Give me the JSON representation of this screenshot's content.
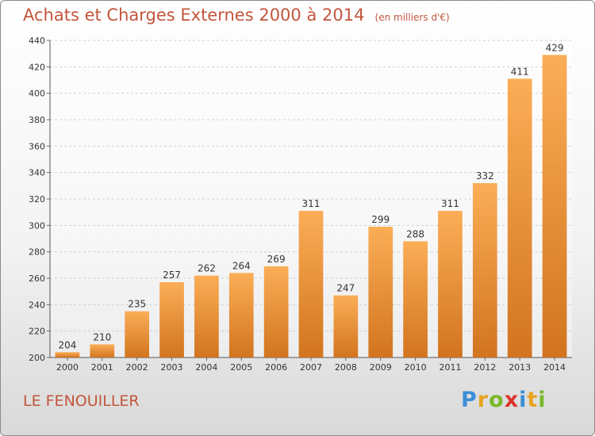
{
  "header": {
    "title": "Achats et Charges Externes 2000 à 2014",
    "unit": "(en milliers d'€)"
  },
  "footer": {
    "town": "LE FENOUILLER",
    "logo_letters": [
      "P",
      "r",
      "o",
      "x",
      "i",
      "t",
      "i"
    ],
    "logo_colors": [
      "#3b8fd6",
      "#e8a320",
      "#78b829",
      "#d9342b",
      "#3b8fd6",
      "#e8a320",
      "#78b829"
    ]
  },
  "colors": {
    "accent": "#c2563d",
    "bar_light": "#fbae57",
    "bar_dark": "#d2741f",
    "grid": "#cfcfcf"
  },
  "chart_data": {
    "type": "bar",
    "categories": [
      "2000",
      "2001",
      "2002",
      "2003",
      "2004",
      "2005",
      "2006",
      "2007",
      "2008",
      "2009",
      "2010",
      "2011",
      "2012",
      "2013",
      "2014"
    ],
    "values": [
      204,
      210,
      235,
      257,
      262,
      264,
      269,
      311,
      247,
      299,
      288,
      311,
      332,
      411,
      429
    ],
    "yticks": [
      200,
      220,
      240,
      260,
      280,
      300,
      320,
      340,
      360,
      380,
      400,
      420,
      440
    ],
    "ylim": [
      200,
      440
    ],
    "grid": true,
    "legend": "none",
    "xlabel": "",
    "ylabel": ""
  }
}
